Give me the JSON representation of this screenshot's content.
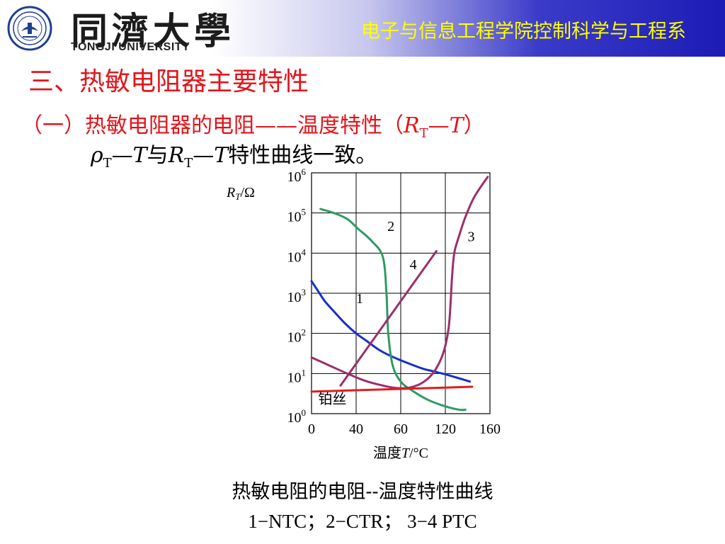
{
  "header": {
    "university_cn": "同濟大學",
    "university_en": "TONGJI UNIVERSITY",
    "department": "电子与信息工程学院控制科学与工程系"
  },
  "title": "三、热敏电阻器主要特性",
  "subtitle": {
    "prefix": "（一）热敏电阻器的电阻——温度特性（",
    "r": "R",
    "r_sub": "T",
    "dash": "—",
    "t": "T",
    "suffix": "）"
  },
  "statement": {
    "rho": "ρ",
    "rho_sub": "T",
    "dash1": "—",
    "t1": "T",
    "and": "与",
    "r": "R",
    "r_sub": "T",
    "dash2": "—",
    "t2": "T",
    "tail": "特性曲线一致。"
  },
  "colors": {
    "title_red": "#e2141b",
    "department_yellow": "#ffff00",
    "header_blue": "#1c1cb6"
  },
  "chart_data": {
    "type": "line",
    "y_axis_label": {
      "r": "R",
      "sub": "T",
      "unit": "/Ω"
    },
    "x_axis_label": {
      "prefix": "温度",
      "t": "T",
      "unit": "/°C"
    },
    "x_ticks": [
      "0",
      "40",
      "60",
      "120",
      "160"
    ],
    "y_ticks": [
      {
        "base": "10",
        "exp": "0"
      },
      {
        "base": "10",
        "exp": "1"
      },
      {
        "base": "10",
        "exp": "2"
      },
      {
        "base": "10",
        "exp": "3"
      },
      {
        "base": "10",
        "exp": "4"
      },
      {
        "base": "10",
        "exp": "5"
      },
      {
        "base": "10",
        "exp": "6"
      }
    ],
    "xlim": [
      0,
      4
    ],
    "ylim": [
      0,
      6
    ],
    "grid": true,
    "series": [
      {
        "label": "1",
        "color": "#1530c8",
        "points": [
          [
            0,
            3.3
          ],
          [
            0.15,
            3.05
          ],
          [
            0.3,
            2.8
          ],
          [
            0.5,
            2.55
          ],
          [
            0.75,
            2.25
          ],
          [
            1.0,
            2.0
          ],
          [
            1.25,
            1.8
          ],
          [
            1.5,
            1.6
          ],
          [
            1.75,
            1.45
          ],
          [
            2.0,
            1.33
          ],
          [
            2.25,
            1.22
          ],
          [
            2.5,
            1.12
          ],
          [
            2.75,
            1.05
          ],
          [
            3.0,
            0.98
          ],
          [
            3.25,
            0.9
          ],
          [
            3.55,
            0.8
          ]
        ]
      },
      {
        "label": "2",
        "color": "#2e9b62",
        "points": [
          [
            0.2,
            5.1
          ],
          [
            0.5,
            5.0
          ],
          [
            0.8,
            4.85
          ],
          [
            1.05,
            4.6
          ],
          [
            1.35,
            4.3
          ],
          [
            1.6,
            3.9
          ],
          [
            1.68,
            3.0
          ],
          [
            1.72,
            2.0
          ],
          [
            1.82,
            1.2
          ],
          [
            2.0,
            0.8
          ],
          [
            2.25,
            0.58
          ],
          [
            2.6,
            0.35
          ],
          [
            2.95,
            0.2
          ],
          [
            3.3,
            0.1
          ],
          [
            3.45,
            0.1
          ]
        ]
      },
      {
        "label": "3",
        "color": "#9b2f6a",
        "points": [
          [
            0,
            1.4
          ],
          [
            0.4,
            1.2
          ],
          [
            0.8,
            1.0
          ],
          [
            1.2,
            0.82
          ],
          [
            1.6,
            0.7
          ],
          [
            1.9,
            0.64
          ],
          [
            2.2,
            0.65
          ],
          [
            2.5,
            0.78
          ],
          [
            2.75,
            1.05
          ],
          [
            2.95,
            1.5
          ],
          [
            3.07,
            2.1
          ],
          [
            3.12,
            2.8
          ],
          [
            3.15,
            3.4
          ],
          [
            3.2,
            4.0
          ],
          [
            3.3,
            4.4
          ],
          [
            3.45,
            4.9
          ],
          [
            3.65,
            5.4
          ],
          [
            3.95,
            5.9
          ]
        ]
      },
      {
        "label": "4",
        "color": "#9b2f6a",
        "points": [
          [
            0.65,
            0.7
          ],
          [
            2.8,
            4.05
          ]
        ]
      },
      {
        "label": "铂丝",
        "color": "#e11d1d",
        "points": [
          [
            0,
            0.55
          ],
          [
            3.6,
            0.67
          ]
        ]
      }
    ]
  },
  "caption": {
    "line1": "热敏电阻的电阻--温度特性曲线",
    "line2": "1−NTC；2−CTR； 3−4  PTC"
  }
}
